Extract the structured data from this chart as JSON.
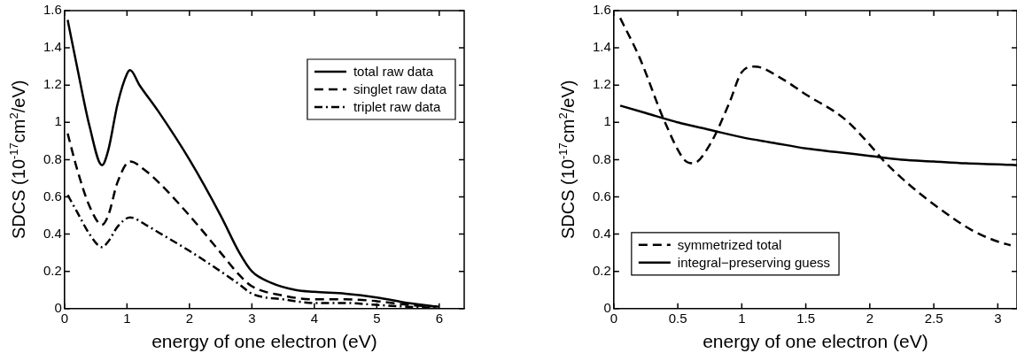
{
  "chart_data": [
    {
      "type": "line",
      "xlabel": "energy of one electron (eV)",
      "ylabel": "SDCS (10$^{-17}$cm$^{2}$/eV)",
      "xlim": [
        0,
        6.4
      ],
      "xticks": [
        0,
        1,
        2,
        3,
        4,
        5,
        6
      ],
      "ylim": [
        0,
        1.6
      ],
      "yticks": [
        0,
        0.2,
        0.4,
        0.6,
        0.8,
        1,
        1.2,
        1.4,
        1.6
      ],
      "grid": false,
      "legend": "top right",
      "marker": "none",
      "series": [
        {
          "name": "total raw data",
          "color": "#000000",
          "line_style": "solid",
          "x": [
            0.05,
            0.2,
            0.4,
            0.6,
            0.7,
            0.85,
            1.0,
            1.05,
            1.2,
            1.5,
            2.0,
            2.5,
            2.8,
            3.0,
            3.3,
            3.7,
            4.0,
            4.5,
            5.0,
            5.5,
            6.0
          ],
          "values": [
            1.55,
            1.3,
            0.98,
            0.77,
            0.85,
            1.1,
            1.26,
            1.28,
            1.2,
            1.06,
            0.8,
            0.5,
            0.3,
            0.2,
            0.14,
            0.1,
            0.09,
            0.08,
            0.06,
            0.03,
            0.01
          ]
        },
        {
          "name": "singlet raw data",
          "color": "#000000",
          "line_style": "dashed",
          "x": [
            0.05,
            0.2,
            0.4,
            0.6,
            0.7,
            0.85,
            1.05,
            1.3,
            1.5,
            2.0,
            2.5,
            2.8,
            3.0,
            3.5,
            4.0,
            4.5,
            5.0,
            5.5,
            6.0
          ],
          "values": [
            0.94,
            0.75,
            0.55,
            0.45,
            0.5,
            0.68,
            0.79,
            0.74,
            0.68,
            0.5,
            0.3,
            0.18,
            0.12,
            0.07,
            0.05,
            0.05,
            0.04,
            0.02,
            0.01
          ]
        },
        {
          "name": "triplet raw data",
          "color": "#000000",
          "line_style": "dashdot",
          "x": [
            0.05,
            0.2,
            0.4,
            0.6,
            0.7,
            0.85,
            1.05,
            1.3,
            1.5,
            2.0,
            2.5,
            2.8,
            3.0,
            3.5,
            4.0,
            4.5,
            5.0,
            5.5,
            6.0
          ],
          "values": [
            0.61,
            0.52,
            0.4,
            0.33,
            0.36,
            0.44,
            0.49,
            0.45,
            0.41,
            0.31,
            0.2,
            0.13,
            0.08,
            0.05,
            0.03,
            0.03,
            0.02,
            0.01,
            0.005
          ]
        }
      ]
    },
    {
      "type": "line",
      "xlabel": "energy of one electron (eV)",
      "ylabel": "SDCS (10$^{-17}$cm$^{2}$/eV)",
      "xlim": [
        0,
        3.15
      ],
      "xticks": [
        0,
        0.5,
        1,
        1.5,
        2,
        2.5,
        3
      ],
      "ylim": [
        0,
        1.6
      ],
      "yticks": [
        0,
        0.2,
        0.4,
        0.6,
        0.8,
        1,
        1.2,
        1.4,
        1.6
      ],
      "grid": false,
      "legend": "bottom left",
      "marker": "none",
      "series": [
        {
          "name": "symmetrized total",
          "color": "#000000",
          "line_style": "dashed",
          "x": [
            0.05,
            0.2,
            0.4,
            0.55,
            0.62,
            0.75,
            0.9,
            1.0,
            1.1,
            1.3,
            1.5,
            1.8,
            2.0,
            2.1,
            2.3,
            2.5,
            2.8,
            3.0,
            3.1
          ],
          "values": [
            1.56,
            1.35,
            1.0,
            0.8,
            0.78,
            0.88,
            1.1,
            1.27,
            1.3,
            1.24,
            1.15,
            1.02,
            0.88,
            0.8,
            0.67,
            0.56,
            0.42,
            0.36,
            0.34
          ]
        },
        {
          "name": "integral−preserving guess",
          "color": "#000000",
          "line_style": "solid",
          "x": [
            0.05,
            0.25,
            0.5,
            0.75,
            1.0,
            1.25,
            1.5,
            1.75,
            2.0,
            2.25,
            2.5,
            2.75,
            3.0,
            3.15
          ],
          "values": [
            1.09,
            1.05,
            1.0,
            0.96,
            0.92,
            0.89,
            0.86,
            0.84,
            0.82,
            0.8,
            0.79,
            0.78,
            0.775,
            0.77
          ]
        }
      ]
    }
  ]
}
